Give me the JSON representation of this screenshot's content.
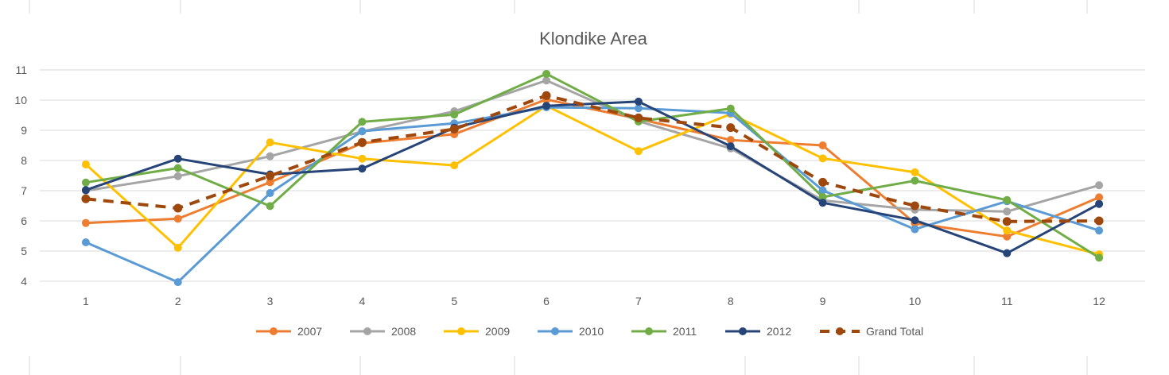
{
  "chart_data": {
    "type": "line",
    "title": "Klondike Area",
    "xlabel": "",
    "ylabel": "",
    "categories": [
      "1",
      "2",
      "3",
      "4",
      "5",
      "6",
      "7",
      "8",
      "9",
      "10",
      "11",
      "12"
    ],
    "ylim": [
      4,
      11
    ],
    "yticks": [
      4,
      5,
      6,
      7,
      8,
      9,
      10,
      11
    ],
    "grid": true,
    "legend_position": "bottom",
    "series": [
      {
        "name": "2007",
        "color": "#ED7D31",
        "dashed": false,
        "values": [
          5.93,
          6.07,
          7.28,
          8.57,
          8.87,
          10.02,
          9.38,
          8.68,
          8.5,
          5.92,
          5.48,
          6.78
        ]
      },
      {
        "name": "2008",
        "color": "#A5A5A5",
        "dashed": false,
        "values": [
          7.0,
          7.48,
          8.14,
          8.96,
          9.63,
          10.65,
          9.3,
          8.4,
          6.68,
          6.37,
          6.31,
          7.18
        ]
      },
      {
        "name": "2009",
        "color": "#FFC000",
        "dashed": false,
        "values": [
          7.87,
          5.11,
          8.6,
          8.06,
          7.84,
          9.81,
          8.31,
          9.54,
          8.07,
          7.61,
          5.68,
          4.89
        ]
      },
      {
        "name": "2010",
        "color": "#5B9BD5",
        "dashed": false,
        "values": [
          5.29,
          3.97,
          6.92,
          8.97,
          9.23,
          9.76,
          9.73,
          9.57,
          7.01,
          5.72,
          6.65,
          5.68
        ]
      },
      {
        "name": "2011",
        "color": "#70AD47",
        "dashed": false,
        "values": [
          7.27,
          7.75,
          6.49,
          9.28,
          9.52,
          10.87,
          9.29,
          9.72,
          6.79,
          7.33,
          6.69,
          4.78
        ]
      },
      {
        "name": "2012",
        "color": "#264478",
        "dashed": false,
        "values": [
          7.02,
          8.06,
          7.54,
          7.73,
          9.09,
          9.81,
          9.95,
          8.47,
          6.6,
          6.02,
          4.93,
          6.56
        ]
      },
      {
        "name": "Grand Total",
        "color": "#9E480E",
        "dashed": true,
        "values": [
          6.73,
          6.42,
          7.49,
          8.6,
          9.04,
          10.15,
          9.41,
          9.09,
          7.28,
          6.5,
          5.98,
          6.0
        ]
      }
    ]
  }
}
